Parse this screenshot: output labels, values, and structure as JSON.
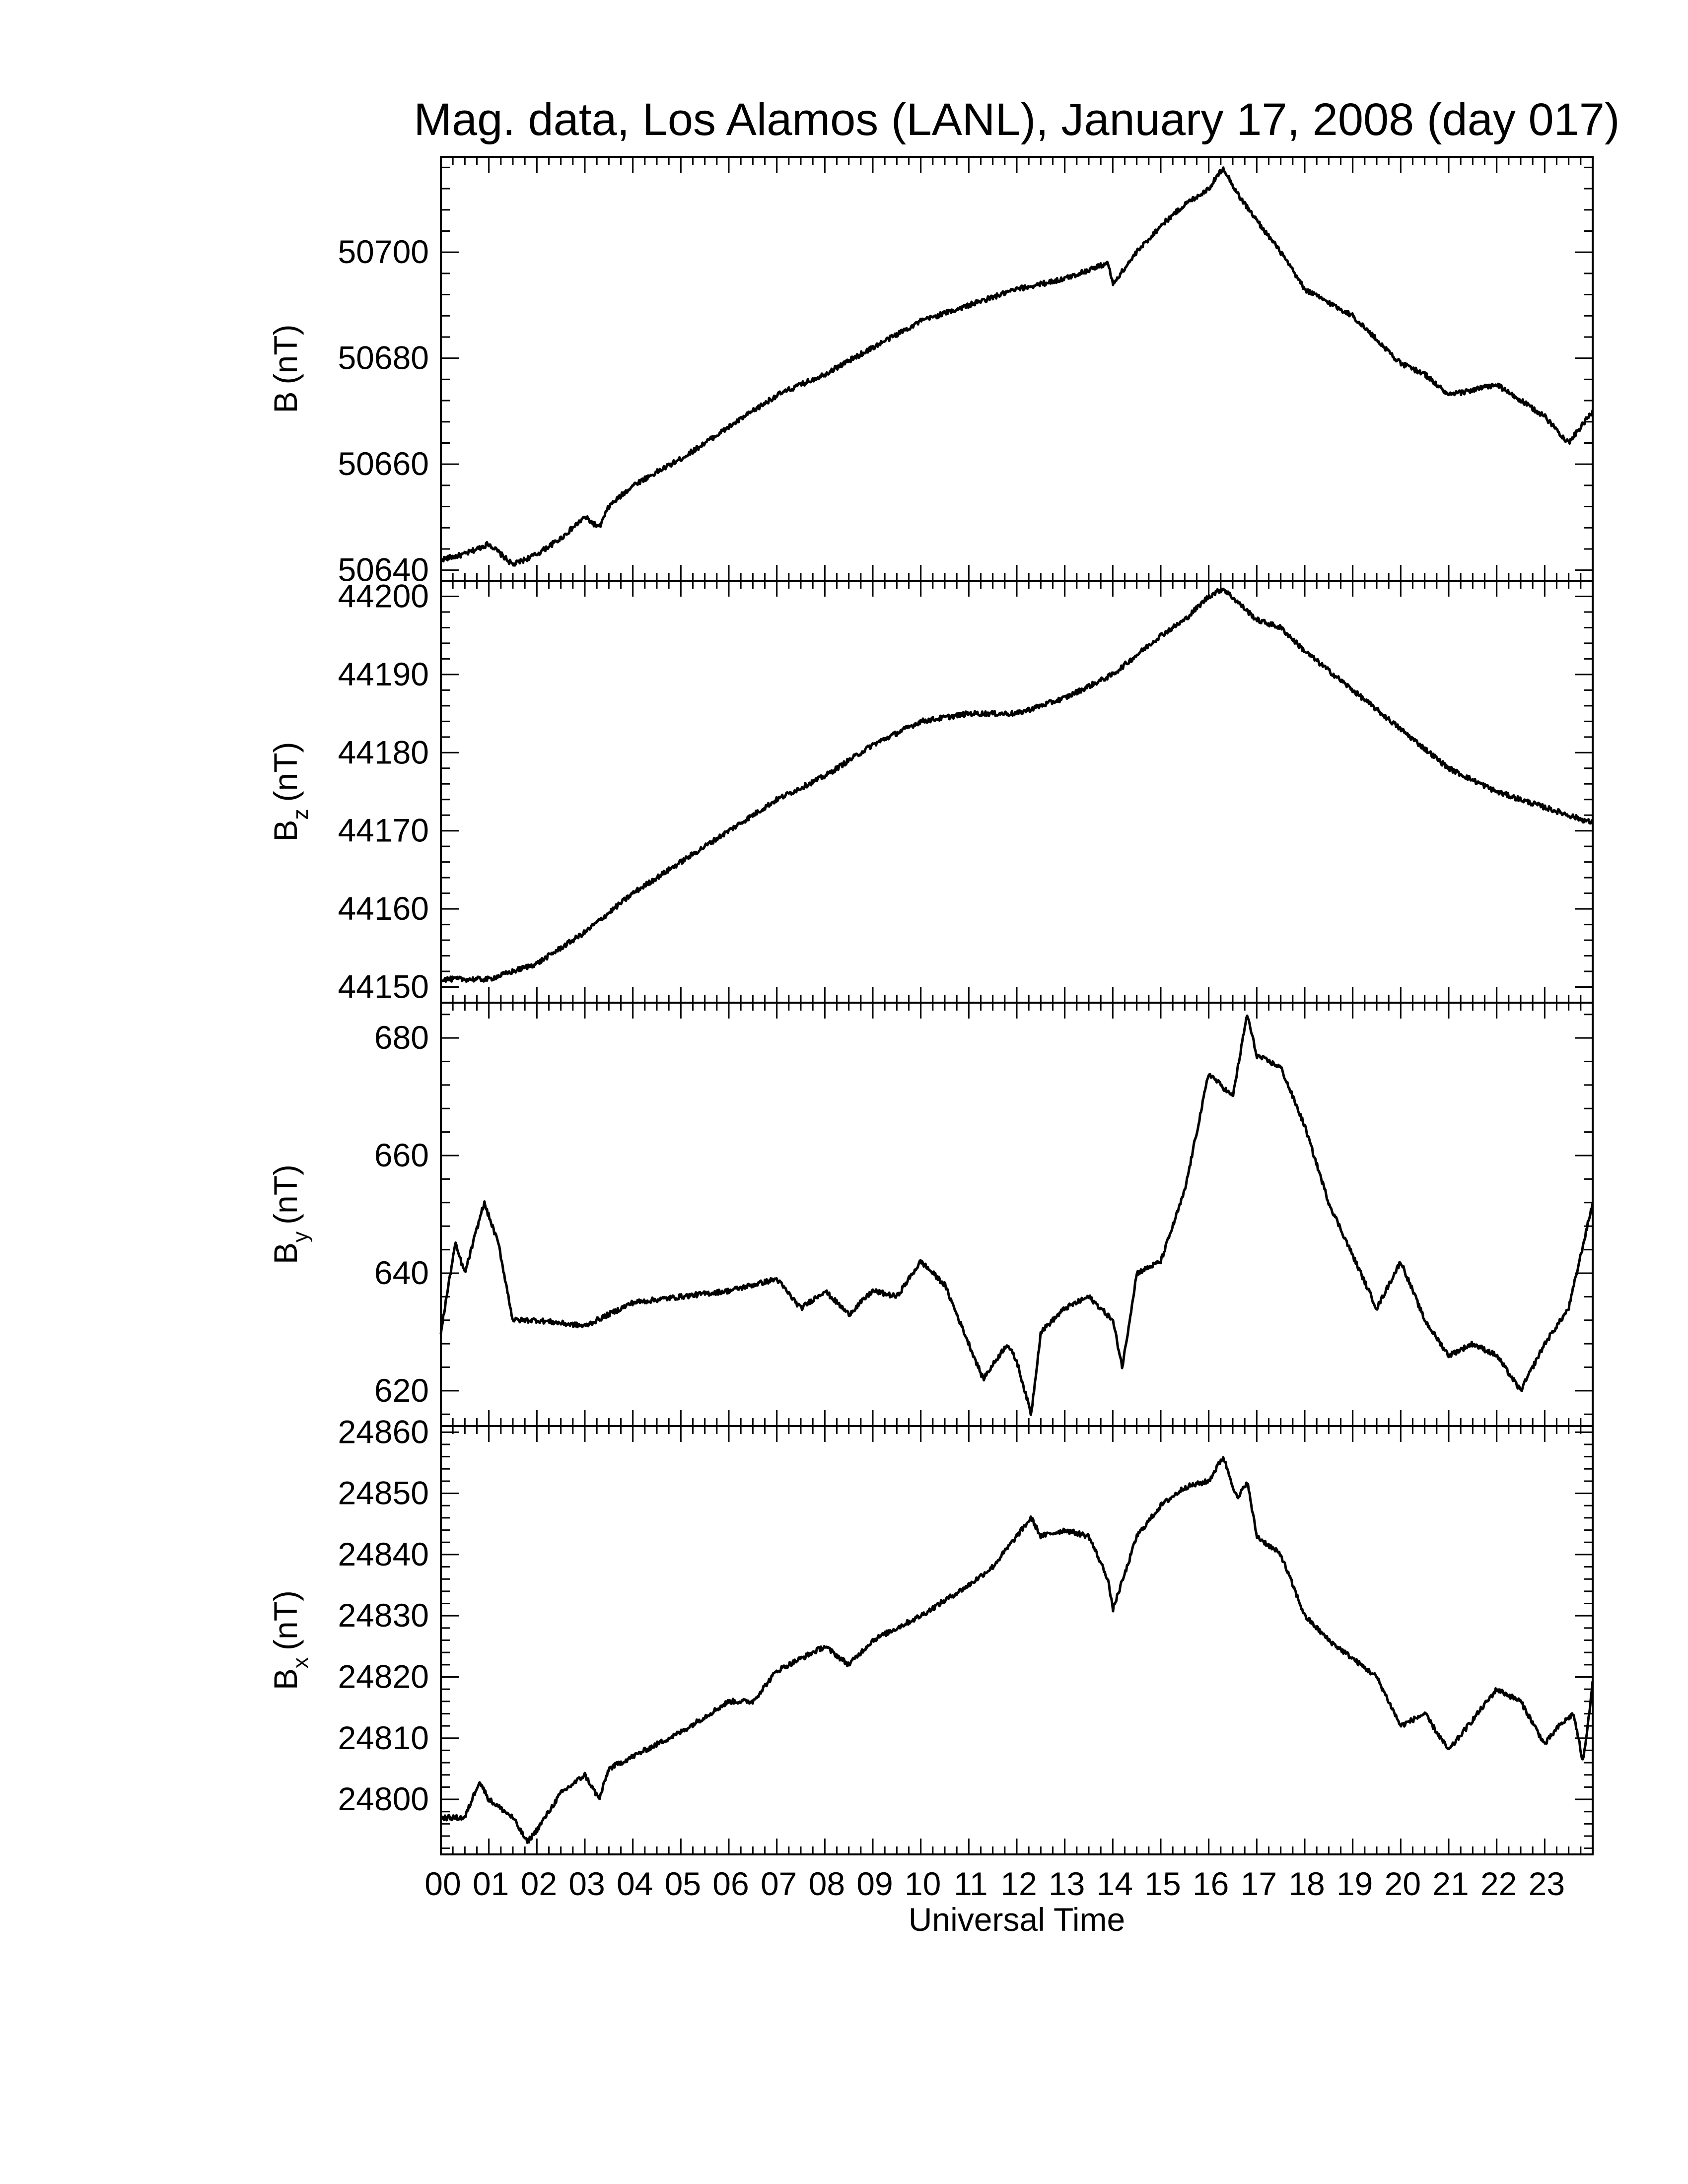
{
  "chart_data": {
    "type": "line",
    "title": "Mag. data, Los Alamos (LANL), January 17, 2008 (day 017)",
    "xlabel": "Universal Time",
    "x_unit": "hours UT",
    "xlim": [
      0,
      24
    ],
    "x_tick_labels": [
      "00",
      "01",
      "02",
      "03",
      "04",
      "05",
      "06",
      "07",
      "08",
      "09",
      "10",
      "11",
      "12",
      "13",
      "14",
      "15",
      "16",
      "17",
      "18",
      "19",
      "20",
      "21",
      "22",
      "23"
    ],
    "grid": false,
    "line_color": "#000000",
    "panels": [
      {
        "id": "B",
        "ylabel_main": "B",
        "ylabel_sub": "",
        "ylabel_unit": "(nT)",
        "ylim": [
          50638,
          50718
        ],
        "yticks": [
          50640,
          50660,
          50680,
          50700
        ],
        "x": [
          0,
          0.5,
          1,
          1.5,
          2,
          2.5,
          3,
          3.3,
          3.5,
          4,
          5,
          6,
          7,
          8,
          9,
          10,
          11,
          12,
          13,
          13.9,
          14,
          14.5,
          15,
          15.5,
          16,
          16.3,
          16.6,
          17,
          17.5,
          18,
          19,
          20,
          20.5,
          21,
          22,
          23,
          23.5,
          24
        ],
        "values": [
          50642,
          50643,
          50645,
          50641,
          50643,
          50646,
          50650,
          50648,
          50652,
          50656,
          50661,
          50667,
          50673,
          50677,
          50682,
          50687,
          50690,
          50693,
          50695,
          50698,
          50694,
          50700,
          50705,
          50709,
          50712,
          50716,
          50711,
          50706,
          50700,
          50693,
          50688,
          50679,
          50677,
          50673,
          50675,
          50669,
          50664,
          50670
        ]
      },
      {
        "id": "Bz",
        "ylabel_main": "B",
        "ylabel_sub": "z",
        "ylabel_unit": "(nT)",
        "ylim": [
          44148,
          44202
        ],
        "yticks": [
          44150,
          44160,
          44170,
          44180,
          44190,
          44200
        ],
        "x": [
          0,
          1,
          1.5,
          2,
          3,
          4,
          5,
          6,
          7,
          8,
          9,
          10,
          11,
          12,
          13,
          14,
          15,
          15.5,
          16,
          16.3,
          17,
          17.5,
          18,
          19,
          20,
          21,
          22,
          23,
          24
        ],
        "values": [
          44151,
          44151,
          44152,
          44153,
          44157,
          44162,
          44166,
          44170,
          44174,
          44177,
          44181,
          44184,
          44185,
          44185,
          44187,
          44190,
          44195,
          44197,
          44200,
          44201,
          44197,
          44196,
          44193,
          44188,
          44183,
          44178,
          44175,
          44173,
          44171
        ]
      },
      {
        "id": "By",
        "ylabel_main": "B",
        "ylabel_sub": "y",
        "ylabel_unit": "(nT)",
        "ylim": [
          614,
          686
        ],
        "yticks": [
          620,
          640,
          660,
          680
        ],
        "x": [
          0,
          0.3,
          0.5,
          0.9,
          1.2,
          1.5,
          2,
          3,
          4,
          5,
          6,
          7,
          7.5,
          8,
          8.5,
          9,
          9.5,
          10,
          10.5,
          11,
          11.3,
          11.8,
          12,
          12.3,
          12.5,
          13,
          13.5,
          14,
          14.2,
          14.5,
          15,
          15.5,
          16,
          16.5,
          16.8,
          17,
          17.5,
          18,
          18.5,
          19,
          19.5,
          20,
          20.5,
          21,
          21.5,
          22,
          22.5,
          23,
          23.5,
          24
        ],
        "values": [
          630,
          645,
          640,
          652,
          645,
          632,
          632,
          631,
          635,
          636,
          637,
          639,
          634,
          637,
          633,
          637,
          636,
          642,
          638,
          628,
          622,
          628,
          625,
          616,
          630,
          634,
          636,
          632,
          624,
          640,
          642,
          654,
          674,
          670,
          684,
          677,
          675,
          665,
          652,
          643,
          634,
          642,
          632,
          626,
          628,
          626,
          620,
          628,
          634,
          652
        ]
      },
      {
        "id": "Bx",
        "ylabel_main": "B",
        "ylabel_sub": "x",
        "ylabel_unit": "(nT)",
        "ylim": [
          24791,
          24861
        ],
        "yticks": [
          24800,
          24810,
          24820,
          24830,
          24840,
          24850,
          24860
        ],
        "x": [
          0,
          0.5,
          0.8,
          1,
          1.5,
          1.8,
          2,
          2.5,
          3,
          3.3,
          3.5,
          4,
          5,
          6,
          6.5,
          7,
          7.5,
          8,
          8.5,
          9,
          10,
          11,
          11.5,
          12,
          12.3,
          12.5,
          13,
          13.5,
          13.9,
          14,
          14.3,
          14.5,
          15,
          15.5,
          16,
          16.3,
          16.6,
          16.8,
          17,
          17.5,
          18,
          18.5,
          19,
          19.5,
          20,
          20.5,
          21,
          21.5,
          22,
          22.5,
          23,
          23.3,
          23.6,
          23.8,
          24
        ],
        "values": [
          24797,
          24797,
          24803,
          24800,
          24797,
          24793,
          24795,
          24801,
          24804,
          24800,
          24805,
          24807,
          24811,
          24816,
          24816,
          24821,
          24823,
          24825,
          24822,
          24826,
          24830,
          24835,
          24838,
          24843,
          24846,
          24843,
          24844,
          24843,
          24836,
          24831,
          24838,
          24843,
          24848,
          24851,
          24852,
          24856,
          24849,
          24852,
          24843,
          24840,
          24830,
          24826,
          24823,
          24820,
          24812,
          24814,
          24808,
          24813,
          24818,
          24816,
          24809,
          24812,
          24814,
          24806,
          24819
        ]
      }
    ]
  }
}
